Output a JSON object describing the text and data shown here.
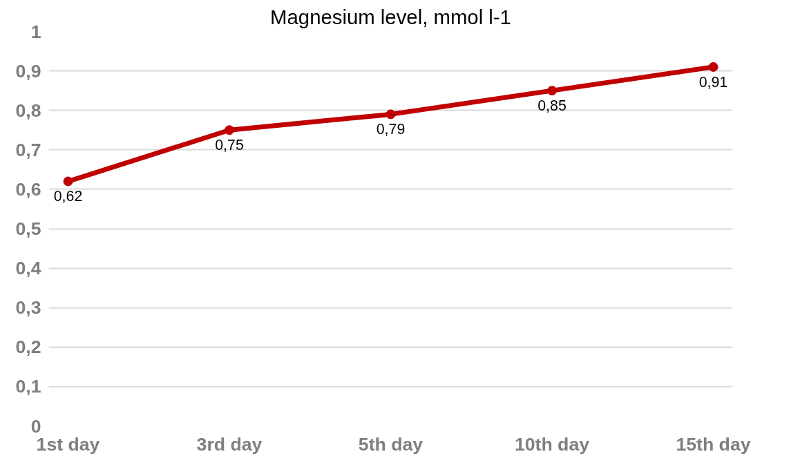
{
  "chart_data": {
    "type": "line",
    "title": "Magnesium level, mmol l-1",
    "categories": [
      "1st day",
      "3rd day",
      "5th day",
      "10th day",
      "15th day"
    ],
    "series": [
      {
        "color": "#c00000",
        "values": [
          0.62,
          0.75,
          0.79,
          0.85,
          0.91
        ],
        "value_labels": [
          "0,62",
          "0,75",
          "0,79",
          "0,85",
          "0,91"
        ]
      }
    ],
    "ylim": [
      0,
      1
    ],
    "yticks": [
      {
        "value": 0,
        "label": "0"
      },
      {
        "value": 0.1,
        "label": "0,1"
      },
      {
        "value": 0.2,
        "label": "0,2"
      },
      {
        "value": 0.3,
        "label": "0,3"
      },
      {
        "value": 0.4,
        "label": "0,4"
      },
      {
        "value": 0.5,
        "label": "0,5"
      },
      {
        "value": 0.6,
        "label": "0,6"
      },
      {
        "value": 0.7,
        "label": "0,7"
      },
      {
        "value": 0.8,
        "label": "0,8"
      },
      {
        "value": 0.9,
        "label": "0,9"
      },
      {
        "value": 1,
        "label": "1"
      }
    ],
    "grid": "y",
    "marker": "circle",
    "line_style": "solid"
  }
}
